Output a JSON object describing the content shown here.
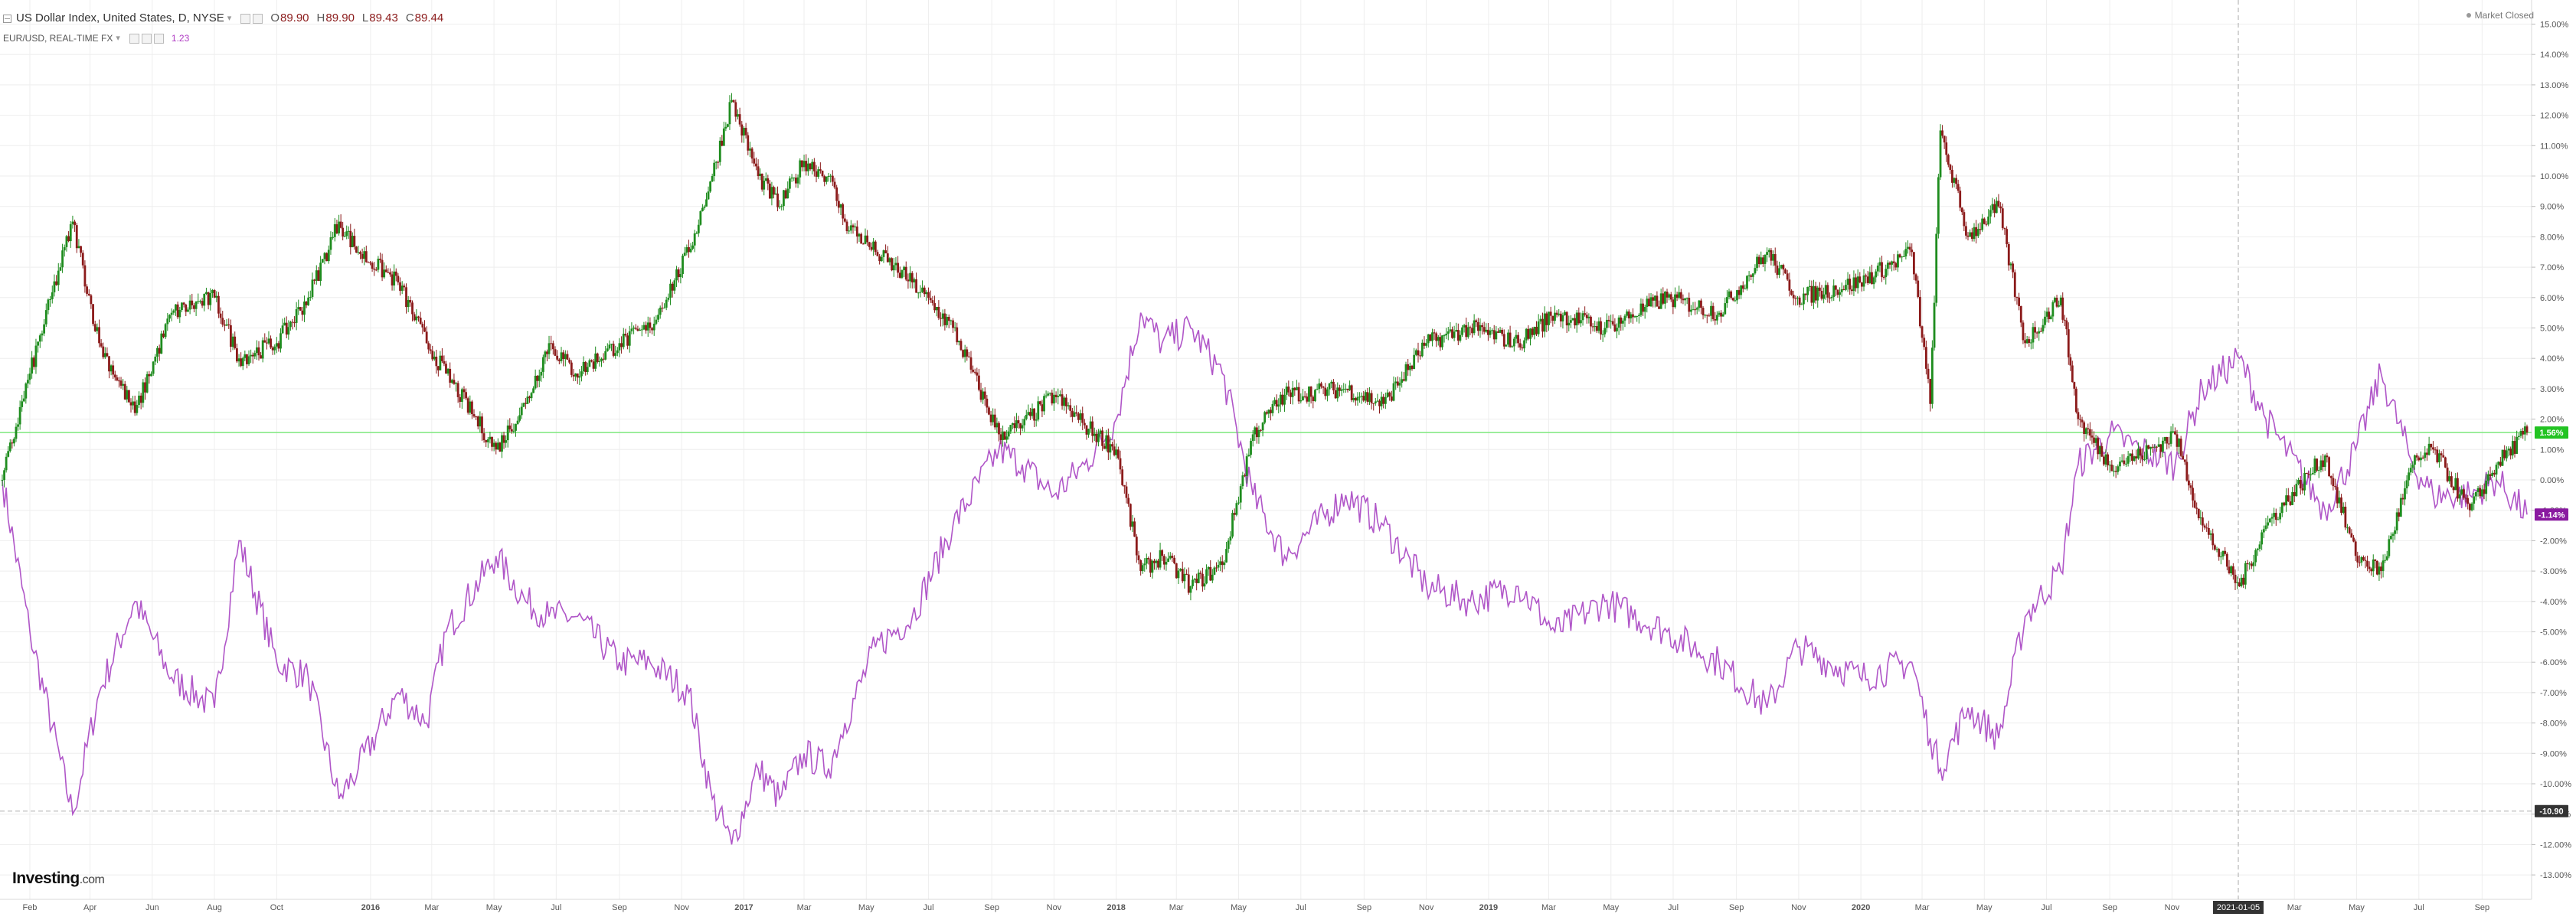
{
  "header": {
    "title": "US Dollar Index, United States, D, NYSE",
    "ohlc": [
      {
        "k": "O",
        "v": "89.90"
      },
      {
        "k": "H",
        "v": "89.90"
      },
      {
        "k": "L",
        "v": "89.43"
      },
      {
        "k": "C",
        "v": "89.44"
      }
    ],
    "secondary_title": "EUR/USD, REAL-TIME FX",
    "secondary_value": "1.23",
    "market_status": "Market Closed"
  },
  "brand": {
    "name": "Investing",
    "suffix": ".com"
  },
  "colors": {
    "up": "#1e8c1e",
    "down": "#8b1a1a",
    "eurusd": "#b056c8",
    "level_line": "#7ee87e",
    "dashed": "#aaaaaa",
    "grid": "#eeeeee"
  },
  "chart_data": {
    "type": "line",
    "title": "US Dollar Index, United States, D, NYSE",
    "y_axis": {
      "unit": "%",
      "side": "right",
      "ylim": [
        -13.0,
        15.0
      ],
      "ticks": [
        "15.00%",
        "14.00%",
        "13.00%",
        "12.00%",
        "11.00%",
        "10.00%",
        "9.00%",
        "8.00%",
        "7.00%",
        "6.00%",
        "5.00%",
        "4.00%",
        "3.00%",
        "2.00%",
        "1.00%",
        "0.00%",
        "-1.00%",
        "-2.00%",
        "-3.00%",
        "-4.00%",
        "-5.00%",
        "-6.00%",
        "-7.00%",
        "-8.00%",
        "-9.00%",
        "-10.00%",
        "-11.00%",
        "-12.00%",
        "-13.00%"
      ]
    },
    "x_axis": {
      "range": [
        "2015-01-05",
        "2021-10-15"
      ],
      "ticks": [
        {
          "date": "2015-02-01",
          "label": "Feb"
        },
        {
          "date": "2015-04-01",
          "label": "Apr"
        },
        {
          "date": "2015-06-01",
          "label": "Jun"
        },
        {
          "date": "2015-08-01",
          "label": "Aug"
        },
        {
          "date": "2015-10-01",
          "label": "Oct"
        },
        {
          "date": "2016-01-01",
          "label": "2016"
        },
        {
          "date": "2016-03-01",
          "label": "Mar"
        },
        {
          "date": "2016-05-01",
          "label": "May"
        },
        {
          "date": "2016-07-01",
          "label": "Jul"
        },
        {
          "date": "2016-09-01",
          "label": "Sep"
        },
        {
          "date": "2016-11-01",
          "label": "Nov"
        },
        {
          "date": "2017-01-01",
          "label": "2017"
        },
        {
          "date": "2017-03-01",
          "label": "Mar"
        },
        {
          "date": "2017-05-01",
          "label": "May"
        },
        {
          "date": "2017-07-01",
          "label": "Jul"
        },
        {
          "date": "2017-09-01",
          "label": "Sep"
        },
        {
          "date": "2017-11-01",
          "label": "Nov"
        },
        {
          "date": "2018-01-01",
          "label": "2018"
        },
        {
          "date": "2018-03-01",
          "label": "Mar"
        },
        {
          "date": "2018-05-01",
          "label": "May"
        },
        {
          "date": "2018-07-01",
          "label": "Jul"
        },
        {
          "date": "2018-09-01",
          "label": "Sep"
        },
        {
          "date": "2018-11-01",
          "label": "Nov"
        },
        {
          "date": "2019-01-01",
          "label": "2019"
        },
        {
          "date": "2019-03-01",
          "label": "Mar"
        },
        {
          "date": "2019-05-01",
          "label": "May"
        },
        {
          "date": "2019-07-01",
          "label": "Jul"
        },
        {
          "date": "2019-09-01",
          "label": "Sep"
        },
        {
          "date": "2019-11-01",
          "label": "Nov"
        },
        {
          "date": "2020-01-01",
          "label": "2020"
        },
        {
          "date": "2020-03-01",
          "label": "Mar"
        },
        {
          "date": "2020-05-01",
          "label": "May"
        },
        {
          "date": "2020-07-01",
          "label": "Jul"
        },
        {
          "date": "2020-09-01",
          "label": "Sep"
        },
        {
          "date": "2020-11-01",
          "label": "Nov"
        },
        {
          "date": "2021-03-01",
          "label": "Mar"
        },
        {
          "date": "2021-05-01",
          "label": "May"
        },
        {
          "date": "2021-07-01",
          "label": "Jul"
        },
        {
          "date": "2021-09-01",
          "label": "Sep"
        }
      ]
    },
    "series": [
      {
        "name": "US Dollar Index, United States, D, NYSE",
        "style": "candlestick",
        "x": [
          "2015-01-05",
          "2015-02-01",
          "2015-03-15",
          "2015-04-10",
          "2015-05-15",
          "2015-06-20",
          "2015-08-01",
          "2015-08-25",
          "2015-10-01",
          "2015-11-01",
          "2015-12-01",
          "2015-12-20",
          "2016-01-28",
          "2016-02-25",
          "2016-03-15",
          "2016-05-03",
          "2016-06-01",
          "2016-06-24",
          "2016-07-20",
          "2016-09-01",
          "2016-10-01",
          "2016-11-08",
          "2016-12-01",
          "2016-12-20",
          "2017-01-15",
          "2017-02-05",
          "2017-03-01",
          "2017-03-25",
          "2017-04-10",
          "2017-05-10",
          "2017-06-15",
          "2017-07-25",
          "2017-09-08",
          "2017-10-01",
          "2017-11-01",
          "2017-12-01",
          "2018-01-01",
          "2018-01-25",
          "2018-02-15",
          "2018-03-15",
          "2018-04-15",
          "2018-05-15",
          "2018-06-15",
          "2018-08-14",
          "2018-09-20",
          "2018-11-01",
          "2018-12-14",
          "2019-01-30",
          "2019-03-07",
          "2019-04-25",
          "2019-06-25",
          "2019-08-15",
          "2019-10-01",
          "2019-10-31",
          "2019-12-31",
          "2020-02-20",
          "2020-03-09",
          "2020-03-19",
          "2020-04-15",
          "2020-05-15",
          "2020-06-10",
          "2020-07-15",
          "2020-08-01",
          "2020-09-01",
          "2020-10-01",
          "2020-11-04",
          "2020-12-01",
          "2021-01-06",
          "2021-02-01",
          "2021-03-31",
          "2021-04-30",
          "2021-05-25",
          "2021-06-25",
          "2021-07-15",
          "2021-08-20",
          "2021-09-15",
          "2021-10-15"
        ],
        "values": [
          0.0,
          3.5,
          8.5,
          4.5,
          2.2,
          5.5,
          6.0,
          4.0,
          4.5,
          6.0,
          8.5,
          7.5,
          6.5,
          4.5,
          3.5,
          1.0,
          2.5,
          4.5,
          3.5,
          4.5,
          5.0,
          7.5,
          10.0,
          12.5,
          10.0,
          9.0,
          10.5,
          10.0,
          8.5,
          7.5,
          6.5,
          5.0,
          1.5,
          1.8,
          2.8,
          1.8,
          1.0,
          -3.0,
          -2.5,
          -3.5,
          -2.8,
          1.5,
          2.8,
          3.0,
          2.5,
          4.5,
          5.0,
          4.5,
          5.5,
          5.0,
          6.0,
          5.5,
          7.5,
          6.0,
          6.5,
          7.5,
          2.5,
          11.5,
          8.0,
          9.0,
          4.5,
          6.0,
          2.0,
          0.5,
          0.8,
          1.5,
          -1.5,
          -3.5,
          -1.5,
          0.8,
          -2.5,
          -3.0,
          0.5,
          1.0,
          -1.0,
          0.5,
          1.56
        ]
      },
      {
        "name": "EUR/USD, REAL-TIME FX",
        "style": "line",
        "x": [
          "2015-01-05",
          "2015-02-01",
          "2015-03-15",
          "2015-04-10",
          "2015-05-15",
          "2015-06-20",
          "2015-08-01",
          "2015-08-25",
          "2015-10-01",
          "2015-11-01",
          "2015-12-01",
          "2015-12-20",
          "2016-01-28",
          "2016-02-25",
          "2016-03-15",
          "2016-05-03",
          "2016-06-01",
          "2016-06-24",
          "2016-07-20",
          "2016-09-01",
          "2016-10-01",
          "2016-11-08",
          "2016-12-01",
          "2016-12-20",
          "2017-01-15",
          "2017-02-05",
          "2017-03-01",
          "2017-03-25",
          "2017-04-10",
          "2017-05-10",
          "2017-06-15",
          "2017-07-25",
          "2017-09-08",
          "2017-10-01",
          "2017-11-01",
          "2017-12-01",
          "2018-01-01",
          "2018-01-25",
          "2018-02-15",
          "2018-03-15",
          "2018-04-15",
          "2018-05-15",
          "2018-06-15",
          "2018-08-14",
          "2018-09-20",
          "2018-11-01",
          "2018-12-14",
          "2019-01-30",
          "2019-03-07",
          "2019-04-25",
          "2019-06-25",
          "2019-08-15",
          "2019-10-01",
          "2019-10-31",
          "2019-12-31",
          "2020-02-20",
          "2020-03-09",
          "2020-03-19",
          "2020-04-15",
          "2020-05-15",
          "2020-06-10",
          "2020-07-15",
          "2020-08-01",
          "2020-09-01",
          "2020-10-01",
          "2020-11-04",
          "2020-12-01",
          "2021-01-06",
          "2021-02-01",
          "2021-03-31",
          "2021-04-30",
          "2021-05-25",
          "2021-06-25",
          "2021-07-15",
          "2021-08-20",
          "2021-09-15",
          "2021-10-15"
        ],
        "values": [
          0.0,
          -5.0,
          -11.0,
          -7.0,
          -4.0,
          -6.5,
          -7.5,
          -2.0,
          -6.0,
          -6.5,
          -10.5,
          -9.5,
          -7.0,
          -8.0,
          -5.0,
          -2.5,
          -4.0,
          -4.5,
          -4.5,
          -6.0,
          -6.0,
          -7.0,
          -10.5,
          -12.0,
          -9.5,
          -10.5,
          -9.0,
          -9.5,
          -8.0,
          -5.5,
          -4.5,
          -1.5,
          1.0,
          0.5,
          -0.5,
          0.5,
          2.0,
          5.5,
          4.5,
          5.0,
          3.5,
          -0.5,
          -2.5,
          -0.5,
          -1.5,
          -3.5,
          -4.0,
          -3.5,
          -5.0,
          -4.0,
          -5.0,
          -6.0,
          -7.5,
          -5.5,
          -6.5,
          -6.0,
          -8.5,
          -9.5,
          -7.5,
          -8.5,
          -4.5,
          -3.0,
          0.5,
          1.5,
          1.0,
          0.5,
          3.0,
          4.0,
          2.0,
          -1.0,
          1.0,
          3.5,
          0.5,
          -0.5,
          -0.5,
          0.0,
          -1.14
        ]
      }
    ],
    "reference_lines": [
      {
        "axis": "y",
        "value": 1.56,
        "style": "solid",
        "label": "1.56%"
      },
      {
        "axis": "y",
        "value": -1.14,
        "style": "marker",
        "label": "-1.14%"
      },
      {
        "axis": "y",
        "value": -10.9,
        "style": "dashed",
        "label": "-10.90"
      },
      {
        "axis": "x",
        "value": "2021-01-05",
        "style": "dashed",
        "label": "2021-01-05"
      }
    ],
    "grid": true,
    "legend": "top-left"
  }
}
